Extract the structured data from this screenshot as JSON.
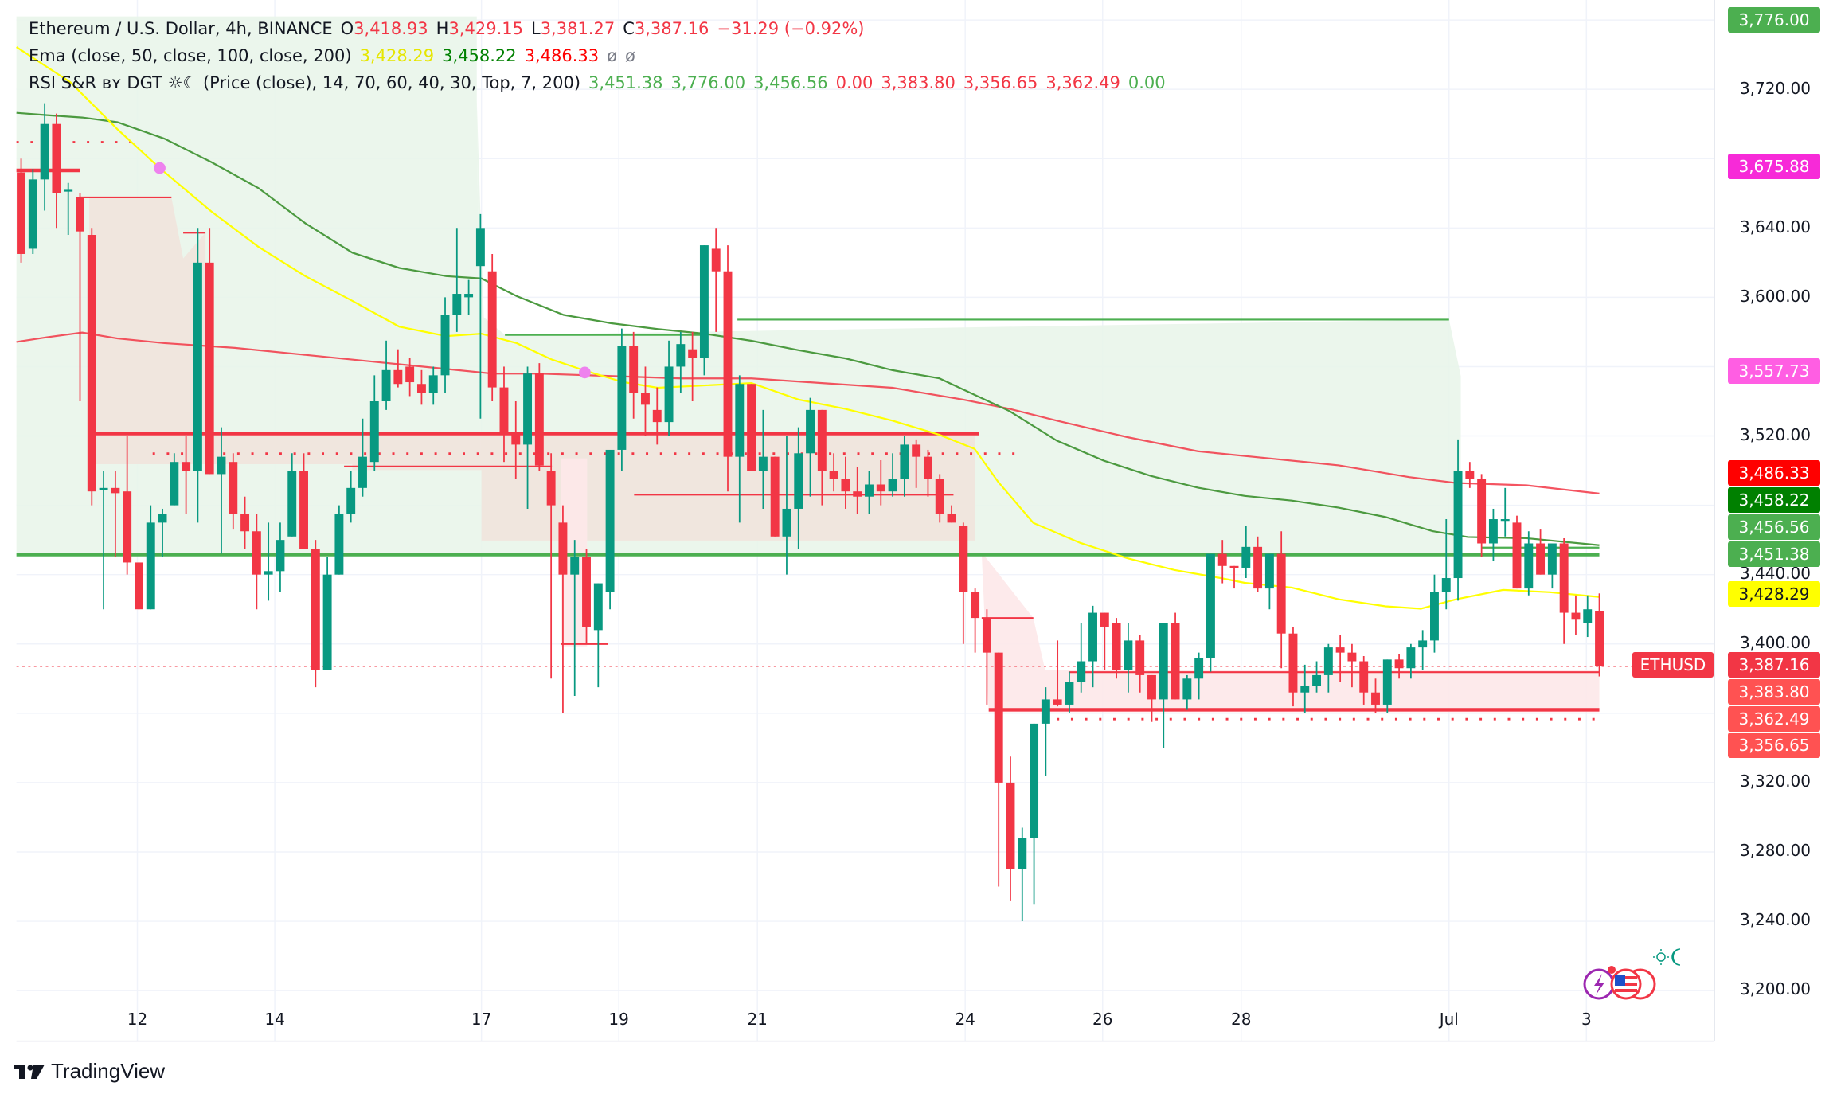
{
  "header": {
    "symbol_title": "Ethereum / U.S. Dollar, 4h, BINANCE",
    "ohlc": {
      "open_label": "O",
      "open": "3,418.93",
      "high_label": "H",
      "high": "3,429.15",
      "low_label": "L",
      "low": "3,381.27",
      "close_label": "C",
      "close": "3,387.16",
      "change": "−31.29 (−0.92%)"
    },
    "ema": {
      "label": "Ema (close, 50, close, 100, close, 200)",
      "values": [
        "3,428.29",
        "3,458.22",
        "3,486.33"
      ],
      "extra": [
        "ø",
        "ø"
      ]
    },
    "rsi": {
      "label": "RSI S&R ʙʏ DGT ☼☾ (Price (close), 14, 70, 60, 40, 30, Top, 7, 200)",
      "values": [
        "3,451.38",
        "3,776.00",
        "3,456.56",
        "0.00",
        "3,383.80",
        "3,356.65",
        "3,362.49",
        "0.00"
      ],
      "colors": [
        "#4caf50",
        "#4caf50",
        "#4caf50",
        "#f23645",
        "#f23645",
        "#f23645",
        "#f23645",
        "#4caf50"
      ]
    }
  },
  "colors": {
    "up": "#089981",
    "down": "#f23645",
    "ema50": "#ffff00",
    "ema100": "#008000",
    "ema200": "#ff0000",
    "green_zone": "#e8f5e9",
    "red_zone": "#fde8e9",
    "grid": "#f0f3fa"
  },
  "price_axis": {
    "ticks": [
      "3,720.00",
      "3,640.00",
      "3,600.00",
      "3,520.00",
      "3,440.00",
      "3,400.00",
      "3,320.00",
      "3,280.00",
      "3,240.00",
      "3,200.00"
    ],
    "labels": [
      {
        "value": "3,776.00",
        "bg": "#4caf50",
        "fg": "#ffffff"
      },
      {
        "value": "3,675.88",
        "bg": "#f72ad8",
        "fg": "#ffffff"
      },
      {
        "value": "3,557.73",
        "bg": "#ff5ee3",
        "fg": "#ffffff"
      },
      {
        "value": "3,486.33",
        "bg": "#ff0000",
        "fg": "#ffffff"
      },
      {
        "value": "3,458.22",
        "bg": "#008000",
        "fg": "#ffffff"
      },
      {
        "value": "3,456.56",
        "bg": "#4caf50",
        "fg": "#ffffff"
      },
      {
        "value": "3,451.38",
        "bg": "#4caf50",
        "fg": "#ffffff"
      },
      {
        "value": "3,428.29",
        "bg": "#ffff00",
        "fg": "#131722"
      },
      {
        "value": "3,387.16",
        "bg": "#f23645",
        "fg": "#ffffff"
      },
      {
        "value": "3,383.80",
        "bg": "#ff5252",
        "fg": "#ffffff"
      },
      {
        "value": "3,362.49",
        "bg": "#ff5252",
        "fg": "#ffffff"
      },
      {
        "value": "3,356.65",
        "bg": "#ff5252",
        "fg": "#ffffff"
      }
    ],
    "symbol_tag": "ETHUSD"
  },
  "time_axis": {
    "ticks": [
      "12",
      "14",
      "17",
      "19",
      "21",
      "24",
      "26",
      "28",
      "Jul",
      "3"
    ]
  },
  "footer": {
    "brand": "TradingView",
    "logo_icon": "tradingview-logo-icon"
  },
  "chart_data": {
    "type": "candlestick",
    "title": "Ethereum / U.S. Dollar, 4h, BINANCE",
    "xlabel": "",
    "ylabel": "",
    "ylim": [
      3180,
      3790
    ],
    "x_ticks": [
      "12",
      "14",
      "17",
      "19",
      "21",
      "24",
      "26",
      "28",
      "Jul",
      "3"
    ],
    "y_ticks": [
      3200,
      3240,
      3280,
      3320,
      3400,
      3440,
      3520,
      3600,
      3640,
      3720
    ],
    "grid": true,
    "last": {
      "open": 3418.93,
      "high": 3429.15,
      "low": 3381.27,
      "close": 3387.16,
      "change": -31.29,
      "change_pct": -0.92
    },
    "overlays": {
      "ema50": 3428.29,
      "ema100": 3458.22,
      "ema200": 3486.33,
      "rsi_sr_levels": [
        3451.38,
        3776.0,
        3456.56,
        3383.8,
        3356.65,
        3362.49
      ]
    },
    "candles": [
      [
        3672,
        3680,
        3620,
        3625
      ],
      [
        3628,
        3674,
        3625,
        3668
      ],
      [
        3668,
        3712,
        3650,
        3700
      ],
      [
        3700,
        3706,
        3640,
        3660
      ],
      [
        3662,
        3666,
        3636,
        3662
      ],
      [
        3658,
        3660,
        3540,
        3638
      ],
      [
        3636,
        3640,
        3480,
        3488
      ],
      [
        3490,
        3500,
        3420,
        3490
      ],
      [
        3490,
        3500,
        3450,
        3487
      ],
      [
        3488,
        3520,
        3440,
        3447
      ],
      [
        3447,
        3447,
        3425,
        3420
      ],
      [
        3420,
        3480,
        3420,
        3470
      ],
      [
        3470,
        3478,
        3450,
        3475
      ],
      [
        3480,
        3510,
        3480,
        3505
      ],
      [
        3505,
        3520,
        3475,
        3500
      ],
      [
        3500,
        3640,
        3470,
        3620
      ],
      [
        3620,
        3640,
        3500,
        3498
      ],
      [
        3498,
        3525,
        3452,
        3508
      ],
      [
        3505,
        3510,
        3466,
        3475
      ],
      [
        3475,
        3485,
        3455,
        3465
      ],
      [
        3465,
        3475,
        3420,
        3440
      ],
      [
        3440,
        3470,
        3425,
        3442
      ],
      [
        3442,
        3470,
        3430,
        3460
      ],
      [
        3462,
        3510,
        3470,
        3500
      ],
      [
        3500,
        3510,
        3455,
        3455
      ],
      [
        3455,
        3460,
        3375,
        3385
      ],
      [
        3385,
        3450,
        3385,
        3440
      ],
      [
        3440,
        3480,
        3440,
        3475
      ],
      [
        3475,
        3500,
        3470,
        3490
      ],
      [
        3490,
        3530,
        3485,
        3508
      ],
      [
        3505,
        3555,
        3500,
        3540
      ],
      [
        3540,
        3575,
        3535,
        3558
      ],
      [
        3558,
        3570,
        3548,
        3550
      ],
      [
        3560,
        3565,
        3543,
        3551
      ],
      [
        3550,
        3558,
        3538,
        3545
      ],
      [
        3545,
        3560,
        3538,
        3555
      ],
      [
        3555,
        3600,
        3545,
        3590
      ],
      [
        3590,
        3640,
        3580,
        3602
      ],
      [
        3600,
        3610,
        3590,
        3602
      ],
      [
        3618,
        3648,
        3530,
        3640
      ],
      [
        3615,
        3625,
        3540,
        3548
      ],
      [
        3548,
        3560,
        3505,
        3522
      ],
      [
        3522,
        3540,
        3495,
        3515
      ],
      [
        3515,
        3560,
        3478,
        3556
      ],
      [
        3556,
        3562,
        3500,
        3503
      ],
      [
        3500,
        3510,
        3380,
        3480
      ],
      [
        3470,
        3480,
        3360,
        3440
      ],
      [
        3440,
        3460,
        3370,
        3450
      ],
      [
        3450,
        3455,
        3400,
        3410
      ],
      [
        3408,
        3430,
        3375,
        3435
      ],
      [
        3430,
        3495,
        3420,
        3512
      ],
      [
        3512,
        3582,
        3500,
        3572
      ],
      [
        3572,
        3580,
        3530,
        3545
      ],
      [
        3545,
        3560,
        3520,
        3538
      ],
      [
        3535,
        3548,
        3515,
        3528
      ],
      [
        3528,
        3575,
        3520,
        3560
      ],
      [
        3560,
        3580,
        3545,
        3573
      ],
      [
        3570,
        3580,
        3540,
        3565
      ],
      [
        3565,
        3618,
        3555,
        3630
      ],
      [
        3628,
        3640,
        3580,
        3615
      ],
      [
        3615,
        3630,
        3488,
        3508
      ],
      [
        3508,
        3555,
        3470,
        3550
      ],
      [
        3550,
        3550,
        3500,
        3500
      ],
      [
        3500,
        3535,
        3478,
        3508
      ],
      [
        3508,
        3500,
        3465,
        3462
      ],
      [
        3462,
        3520,
        3440,
        3478
      ],
      [
        3478,
        3525,
        3455,
        3510
      ],
      [
        3510,
        3542,
        3485,
        3535
      ],
      [
        3535,
        3532,
        3480,
        3500
      ],
      [
        3500,
        3510,
        3488,
        3495
      ],
      [
        3495,
        3508,
        3478,
        3488
      ],
      [
        3488,
        3502,
        3475,
        3485
      ],
      [
        3485,
        3500,
        3475,
        3492
      ],
      [
        3492,
        3506,
        3480,
        3488
      ],
      [
        3488,
        3510,
        3485,
        3495
      ],
      [
        3495,
        3520,
        3485,
        3515
      ],
      [
        3515,
        3518,
        3490,
        3508
      ],
      [
        3508,
        3512,
        3485,
        3495
      ],
      [
        3495,
        3498,
        3470,
        3475
      ],
      [
        3475,
        3480,
        3470,
        3470
      ],
      [
        3468,
        3470,
        3400,
        3430
      ],
      [
        3430,
        3432,
        3395,
        3415
      ],
      [
        3415,
        3420,
        3365,
        3395
      ],
      [
        3395,
        3378,
        3260,
        3320
      ],
      [
        3320,
        3335,
        3252,
        3270
      ],
      [
        3270,
        3294,
        3240,
        3288
      ],
      [
        3288,
        3340,
        3250,
        3354
      ],
      [
        3354,
        3375,
        3324,
        3368
      ],
      [
        3368,
        3402,
        3364,
        3365
      ],
      [
        3365,
        3384,
        3360,
        3378
      ],
      [
        3378,
        3412,
        3372,
        3390
      ],
      [
        3390,
        3422,
        3375,
        3418
      ],
      [
        3418,
        3418,
        3385,
        3410
      ],
      [
        3412,
        3415,
        3380,
        3385
      ],
      [
        3385,
        3412,
        3372,
        3402
      ],
      [
        3402,
        3405,
        3372,
        3382
      ],
      [
        3382,
        3372,
        3355,
        3368
      ],
      [
        3368,
        3410,
        3340,
        3412
      ],
      [
        3412,
        3418,
        3372,
        3368
      ],
      [
        3368,
        3382,
        3362,
        3380
      ],
      [
        3380,
        3395,
        3368,
        3392
      ],
      [
        3392,
        3440,
        3384,
        3452
      ],
      [
        3452,
        3460,
        3435,
        3445
      ],
      [
        3445,
        3445,
        3432,
        3444
      ],
      [
        3444,
        3468,
        3438,
        3456
      ],
      [
        3456,
        3462,
        3430,
        3432
      ],
      [
        3432,
        3450,
        3420,
        3452
      ],
      [
        3452,
        3465,
        3386,
        3406
      ],
      [
        3406,
        3410,
        3364,
        3372
      ],
      [
        3372,
        3388,
        3360,
        3376
      ],
      [
        3376,
        3390,
        3372,
        3382
      ],
      [
        3382,
        3400,
        3372,
        3398
      ],
      [
        3398,
        3405,
        3378,
        3395
      ],
      [
        3395,
        3400,
        3375,
        3390
      ],
      [
        3390,
        3393,
        3365,
        3372
      ],
      [
        3372,
        3380,
        3360,
        3365
      ],
      [
        3365,
        3385,
        3360,
        3391
      ],
      [
        3391,
        3394,
        3380,
        3386
      ],
      [
        3386,
        3400,
        3380,
        3398
      ],
      [
        3398,
        3408,
        3385,
        3402
      ],
      [
        3402,
        3440,
        3395,
        3430
      ],
      [
        3430,
        3472,
        3420,
        3438
      ],
      [
        3438,
        3518,
        3425,
        3500
      ],
      [
        3500,
        3505,
        3490,
        3495
      ],
      [
        3495,
        3498,
        3450,
        3458
      ],
      [
        3458,
        3478,
        3448,
        3472
      ],
      [
        3472,
        3490,
        3462,
        3472
      ],
      [
        3470,
        3474,
        3440,
        3432
      ],
      [
        3432,
        3465,
        3428,
        3458
      ],
      [
        3458,
        3466,
        3440,
        3440
      ],
      [
        3440,
        3458,
        3432,
        3458
      ],
      [
        3458,
        3461,
        3400,
        3418
      ],
      [
        3418,
        3428,
        3405,
        3414
      ],
      [
        3412,
        3428,
        3404,
        3420
      ],
      [
        3418.93,
        3429.15,
        3381.27,
        3387.16
      ]
    ]
  }
}
